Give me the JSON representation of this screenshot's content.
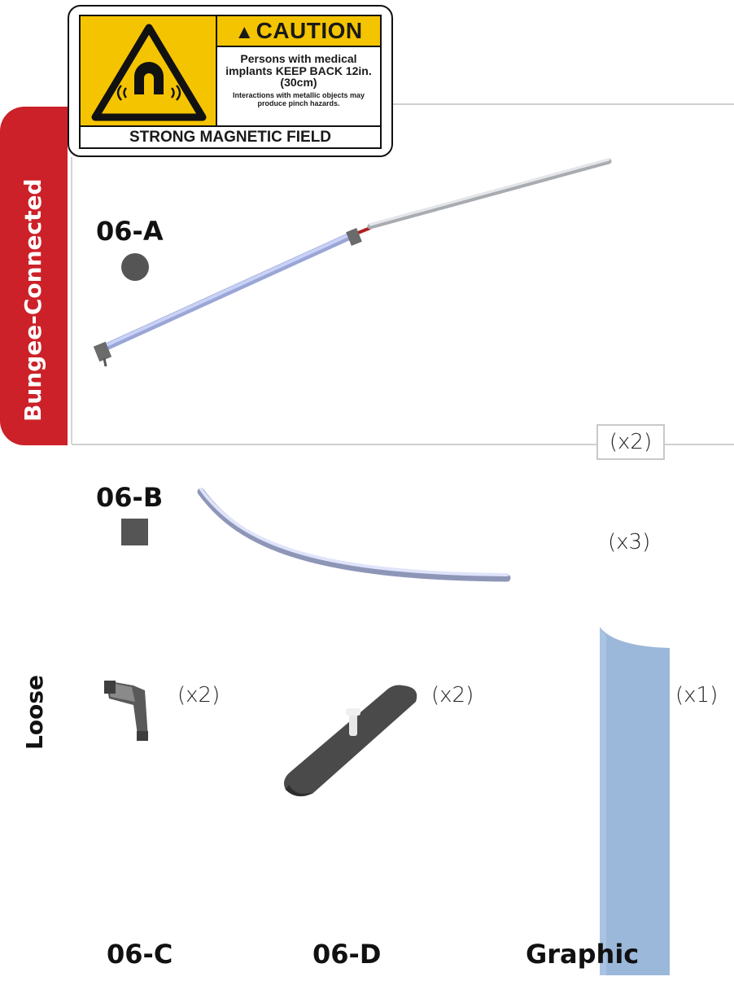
{
  "caution_label": {
    "heading": "CAUTION",
    "line1": "Persons with medical implants KEEP BACK 12in. (30cm)",
    "line2": "Interactions with metallic objects may produce pinch hazards.",
    "footer": "STRONG MAGNETIC FIELD",
    "colors": {
      "yellow": "#f5c400",
      "black": "#111111"
    }
  },
  "sections": {
    "bungee": "Bungee-Connected",
    "loose": "Loose"
  },
  "parts": {
    "a": {
      "id": "06-A",
      "qty": "(x2)",
      "marker": "circle"
    },
    "b": {
      "id": "06-B",
      "qty": "(x3)",
      "marker": "square"
    },
    "c": {
      "id": "06-C",
      "qty": "(x2)"
    },
    "d": {
      "id": "06-D",
      "qty": "(x2)"
    },
    "graphic": {
      "id": "Graphic",
      "qty": "(x1)"
    }
  },
  "colors": {
    "accent_red": "#cc2128",
    "marker_gray": "#555555",
    "pole_blue": "#b9c4ee",
    "graphic_blue": "#9bb8da"
  }
}
